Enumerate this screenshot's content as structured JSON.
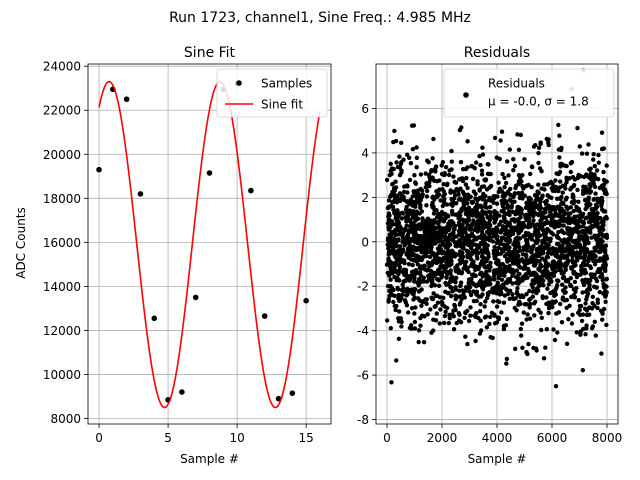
{
  "figure": {
    "suptitle": "Run 1723, channel1, Sine Freq.: 4.985 MHz"
  },
  "colors": {
    "fit_line": "#ff0000",
    "markers": "#000000",
    "grid": "#b0b0b0",
    "frame": "#000000"
  },
  "chart_data": [
    {
      "type": "scatter",
      "title": "Sine Fit",
      "xlabel": "Sample #",
      "ylabel": "ADC Counts",
      "xlim": [
        -0.8,
        16.8
      ],
      "ylim": [
        7750,
        24100
      ],
      "xticks": [
        0,
        5,
        10,
        15
      ],
      "yticks": [
        8000,
        10000,
        12000,
        14000,
        16000,
        18000,
        20000,
        22000,
        24000
      ],
      "grid": true,
      "legend": {
        "placement": "top-right",
        "entries": [
          "Samples",
          "Sine fit"
        ]
      },
      "series": [
        {
          "name": "Samples",
          "kind": "scatter",
          "x": [
            0,
            1,
            2,
            3,
            4,
            5,
            6,
            7,
            8,
            9,
            10,
            11,
            12,
            13,
            14,
            15
          ],
          "y": [
            19300,
            22950,
            22500,
            18200,
            12550,
            8850,
            9200,
            13500,
            19150,
            22950,
            23200,
            18350,
            12650,
            8900,
            9150,
            13350
          ]
        },
        {
          "name": "Sine fit",
          "kind": "line",
          "function": "sine",
          "amplitude": 7400,
          "offset": 15900,
          "period_samples": 8.03,
          "phase_rad": 1.0,
          "x_range": [
            0,
            16
          ]
        }
      ]
    },
    {
      "type": "scatter",
      "title": "Residuals",
      "xlabel": "Sample #",
      "ylabel": "",
      "xlim": [
        -400,
        8400
      ],
      "ylim": [
        -8.2,
        8.0
      ],
      "xticks": [
        0,
        2000,
        4000,
        6000,
        8000
      ],
      "yticks": [
        -8,
        -6,
        -4,
        -2,
        0,
        2,
        4,
        6
      ],
      "grid": true,
      "legend": {
        "placement": "top-right",
        "entries": [
          "Residuals",
          "μ = -0.0, σ = 1.8"
        ]
      },
      "series": [
        {
          "name": "Residuals",
          "kind": "scatter-cloud",
          "n_points": 8000,
          "mean": 0.0,
          "sigma": 1.8,
          "x_range": [
            0,
            8000
          ]
        }
      ]
    }
  ]
}
